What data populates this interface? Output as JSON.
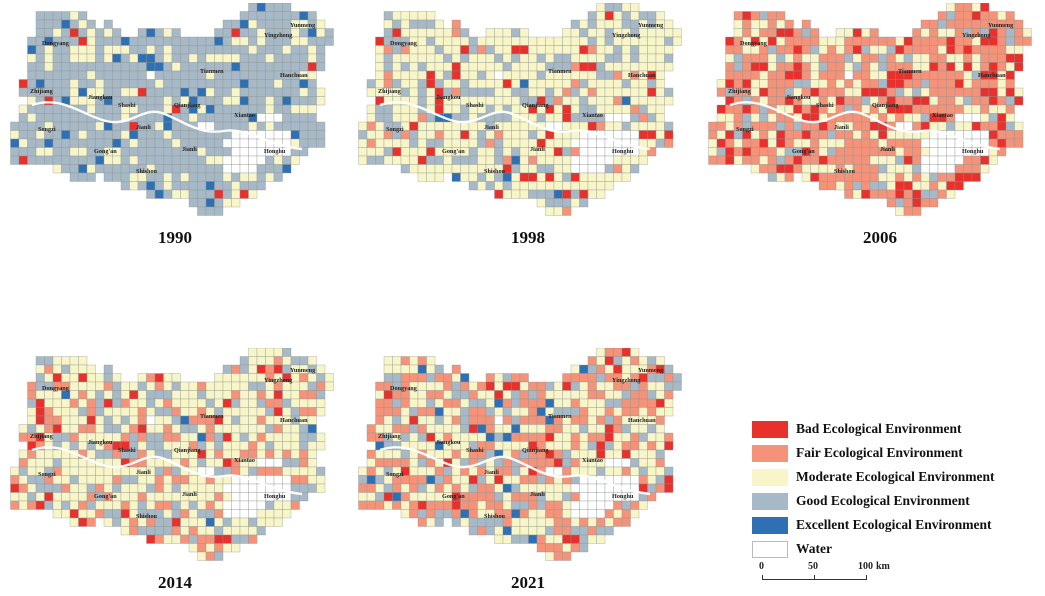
{
  "colors": {
    "bad": "#e8302c",
    "fair": "#f4937a",
    "moderate": "#f8f6c8",
    "good": "#a7b8c6",
    "excellent": "#2f6fb3",
    "water": "#ffffff",
    "grid": "#8f9592"
  },
  "maps": [
    {
      "year": "1990",
      "mix": {
        "bad": 0.02,
        "fair": 0.0,
        "moderate": 0.2,
        "good": 0.72,
        "excellent": 0.06
      },
      "east_bias": 0.0
    },
    {
      "year": "1998",
      "mix": {
        "bad": 0.05,
        "fair": 0.05,
        "moderate": 0.64,
        "good": 0.25,
        "excellent": 0.01
      },
      "east_bias": 0.1
    },
    {
      "year": "2006",
      "mix": {
        "bad": 0.16,
        "fair": 0.46,
        "moderate": 0.26,
        "good": 0.12,
        "excellent": 0.0
      },
      "east_bias": 0.5
    },
    {
      "year": "2014",
      "mix": {
        "bad": 0.05,
        "fair": 0.2,
        "moderate": 0.52,
        "good": 0.22,
        "excellent": 0.01
      },
      "east_bias": 0.1
    },
    {
      "year": "2021",
      "mix": {
        "bad": 0.05,
        "fair": 0.33,
        "moderate": 0.4,
        "good": 0.18,
        "excellent": 0.04
      },
      "east_bias": 0.1
    }
  ],
  "place_names": [
    "Dongyang",
    "Yingzhong",
    "Yunmeng",
    "Tianmen",
    "Hanchuan",
    "Zhijiang",
    "Jiangkou",
    "Shashi",
    "Qianjiang",
    "Xiantao",
    "Songzi",
    "Jianli",
    "Gong'an",
    "Jianli",
    "Honghu",
    "Shishou"
  ],
  "legend": [
    {
      "key": "bad",
      "label": "Bad Ecological Environment"
    },
    {
      "key": "fair",
      "label": "Fair Ecological Environment"
    },
    {
      "key": "moderate",
      "label": "Moderate Ecological Environment"
    },
    {
      "key": "good",
      "label": "Good Ecological Environment"
    },
    {
      "key": "excellent",
      "label": "Excellent Ecological Environment"
    },
    {
      "key": "water",
      "label": "Water"
    }
  ],
  "scale": {
    "ticks": [
      "0",
      "50",
      "100"
    ],
    "unit": "km"
  }
}
